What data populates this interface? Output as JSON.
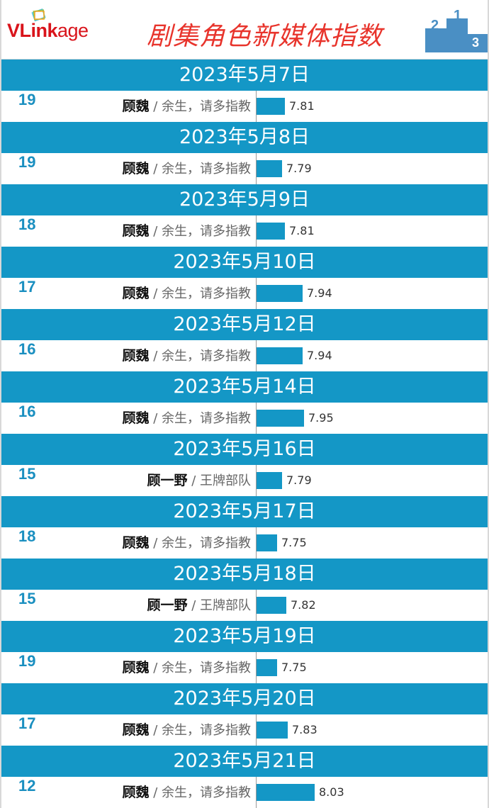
{
  "header": {
    "logo_text_bold": "VLink",
    "logo_text_light": "age",
    "title": "剧集角色新媒体指数"
  },
  "colors": {
    "band": "#1497c6",
    "title": "#e8342c",
    "rank": "#1a8fc0"
  },
  "entries": [
    {
      "date": "2023年5月7日",
      "rank": "19",
      "character": "顾魏",
      "show": "余生，请多指教",
      "index": "7.81"
    },
    {
      "date": "2023年5月8日",
      "rank": "19",
      "character": "顾魏",
      "show": "余生，请多指教",
      "index": "7.79"
    },
    {
      "date": "2023年5月9日",
      "rank": "18",
      "character": "顾魏",
      "show": "余生，请多指教",
      "index": "7.81"
    },
    {
      "date": "2023年5月10日",
      "rank": "17",
      "character": "顾魏",
      "show": "余生，请多指教",
      "index": "7.94"
    },
    {
      "date": "2023年5月12日",
      "rank": "16",
      "character": "顾魏",
      "show": "余生，请多指教",
      "index": "7.94"
    },
    {
      "date": "2023年5月14日",
      "rank": "16",
      "character": "顾魏",
      "show": "余生，请多指教",
      "index": "7.95"
    },
    {
      "date": "2023年5月16日",
      "rank": "15",
      "character": "顾一野",
      "show": "王牌部队",
      "index": "7.79"
    },
    {
      "date": "2023年5月17日",
      "rank": "18",
      "character": "顾魏",
      "show": "余生，请多指教",
      "index": "7.75"
    },
    {
      "date": "2023年5月18日",
      "rank": "15",
      "character": "顾一野",
      "show": "王牌部队",
      "index": "7.82"
    },
    {
      "date": "2023年5月19日",
      "rank": "19",
      "character": "顾魏",
      "show": "余生，请多指教",
      "index": "7.75"
    },
    {
      "date": "2023年5月20日",
      "rank": "17",
      "character": "顾魏",
      "show": "余生，请多指教",
      "index": "7.83"
    },
    {
      "date": "2023年5月21日",
      "rank": "12",
      "character": "顾魏",
      "show": "余生，请多指教",
      "index": "8.03"
    }
  ]
}
